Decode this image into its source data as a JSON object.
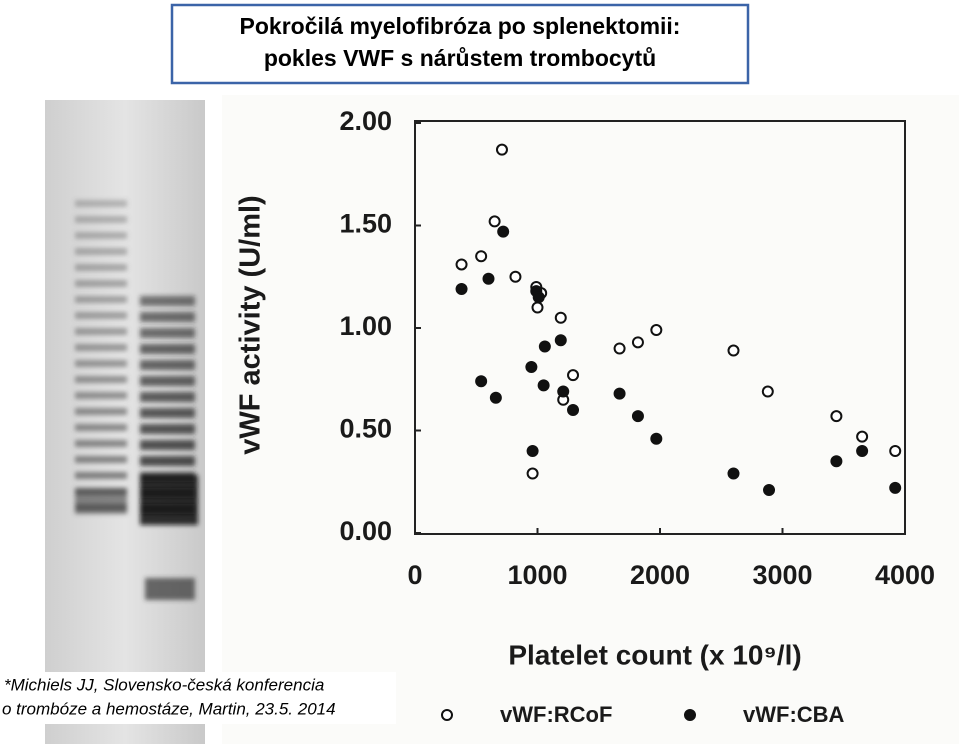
{
  "slide_title": [
    "Pokročilá myelofibróza po splenektomii:",
    "pokles VWF s nárůstem trombocytů"
  ],
  "source_note": [
    "*Michiels JJ, Slovensko-česká konferencia",
    "o trombóze a hemostáze, Martin, 23.5. 2014"
  ],
  "chart_data": {
    "type": "scatter",
    "x_label": "Platelet count (x 10⁹/l)",
    "y_label": "vWF activity (U/ml)",
    "xlim": [
      0,
      4000
    ],
    "xticks": [
      0,
      1000,
      2000,
      3000,
      4000
    ],
    "ylim": [
      0,
      2
    ],
    "yticks": [
      {
        "value": 0,
        "label": "0.00"
      },
      {
        "value": 0.5,
        "label": "0.50"
      },
      {
        "value": 1,
        "label": "1.00"
      },
      {
        "value": 1.5,
        "label": "1.50"
      },
      {
        "value": 2,
        "label": "2.00"
      }
    ],
    "legend": "bottom",
    "grid": false,
    "series": [
      {
        "name": "vWF:RCoF",
        "color": "#111111",
        "marker": "open",
        "x": [
          380,
          540,
          650,
          710,
          820,
          990,
          1030,
          1000,
          960,
          1190,
          1210,
          1290,
          1670,
          1820,
          1970,
          2600,
          2880,
          3440,
          3650,
          3920
        ],
        "values": [
          1.31,
          1.35,
          1.52,
          1.87,
          1.25,
          1.2,
          1.17,
          1.1,
          0.29,
          1.05,
          0.65,
          0.77,
          0.9,
          0.93,
          0.99,
          0.89,
          0.69,
          0.57,
          0.47,
          0.4
        ]
      },
      {
        "name": "vWF:CBA",
        "color": "#111111",
        "marker": "filled",
        "x": [
          380,
          600,
          720,
          540,
          660,
          950,
          990,
          1010,
          960,
          1060,
          1050,
          1190,
          1210,
          1290,
          1670,
          1820,
          1970,
          2600,
          2890,
          3440,
          3650,
          3920
        ],
        "values": [
          1.19,
          1.24,
          1.47,
          0.74,
          0.66,
          0.81,
          1.18,
          1.15,
          0.4,
          0.91,
          0.72,
          0.94,
          0.69,
          0.6,
          0.68,
          0.57,
          0.46,
          0.29,
          0.21,
          0.35,
          0.4,
          0.22
        ]
      }
    ]
  }
}
